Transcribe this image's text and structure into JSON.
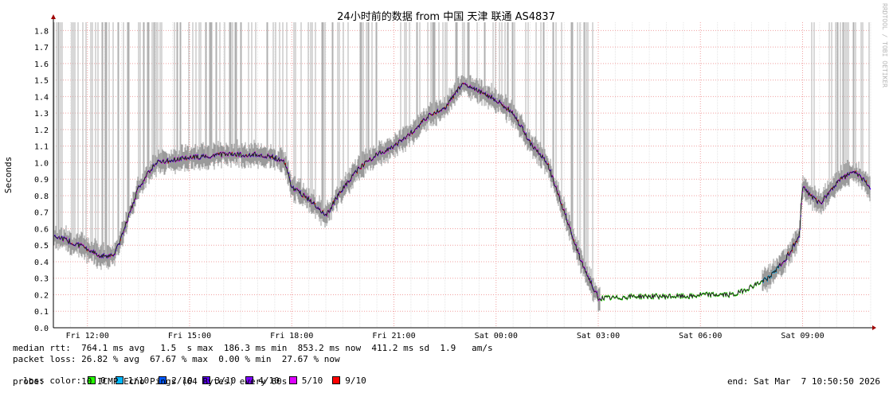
{
  "chart_data": {
    "type": "line",
    "title": "24小时前的数据 from  中国 天津 联通 AS4837",
    "ylabel": "Seconds",
    "xlabel": "",
    "ylim": [
      0,
      1.85
    ],
    "y_ticks": [
      "0.0",
      "0.1",
      "0.2",
      "0.3",
      "0.4",
      "0.5",
      "0.6",
      "0.7",
      "0.8",
      "0.9",
      "1.0",
      "1.1",
      "1.2",
      "1.3",
      "1.4",
      "1.5",
      "1.6",
      "1.7",
      "1.8"
    ],
    "x_ticks": [
      "Fri 12:00",
      "Fri 15:00",
      "Fri 18:00",
      "Fri 21:00",
      "Sat 00:00",
      "Sat 03:00",
      "Sat 06:00",
      "Sat 09:00"
    ],
    "x_range_hours": [
      -1,
      23
    ],
    "grid": true,
    "series": [
      {
        "x": [
          -1,
          -0.5,
          0,
          0.4,
          0.8,
          1,
          1.5,
          2,
          3,
          4,
          5,
          5.5,
          5.8,
          6,
          6.5,
          7,
          7.5,
          8,
          8.5,
          9,
          9.5,
          10,
          10.5,
          11,
          11.5,
          12,
          12.5,
          13,
          13.5,
          14,
          14.5,
          15,
          15.5,
          16,
          17,
          17.8,
          18,
          19,
          20,
          20.5,
          20.9,
          21,
          21.5,
          22,
          22.5,
          23
        ],
        "values": [
          0.56,
          0.52,
          0.48,
          0.43,
          0.45,
          0.55,
          0.85,
          1.0,
          1.03,
          1.05,
          1.05,
          1.03,
          1.0,
          0.85,
          0.78,
          0.68,
          0.85,
          0.97,
          1.05,
          1.1,
          1.18,
          1.28,
          1.33,
          1.48,
          1.43,
          1.38,
          1.3,
          1.12,
          1.0,
          0.7,
          0.4,
          0.18,
          0.18,
          0.19,
          0.19,
          0.19,
          0.2,
          0.2,
          0.3,
          0.42,
          0.55,
          0.85,
          0.75,
          0.88,
          0.95,
          0.85
        ]
      }
    ]
  },
  "stats": {
    "median_rtt": "median rtt:  764.1 ms avg   1.5  s max  186.3 ms min  853.2 ms now  411.2 ms sd  1.9   am/s",
    "packet_loss": "packet loss: 26.82 % avg  67.67 % max  0.00 % min  27.67 % now",
    "loss_color_label": "loss color:",
    "probe": "probe:       10 ICMP Echo Pings (64 Bytes) every 60s",
    "end": "end: Sat Mar  7 10:50:50 2026"
  },
  "loss_legend": [
    {
      "label": "0",
      "color": "#26ff00"
    },
    {
      "label": "1/10",
      "color": "#00b8ff"
    },
    {
      "label": "2/10",
      "color": "#0059ff"
    },
    {
      "label": "3/10",
      "color": "#5e00ff"
    },
    {
      "label": "4/10",
      "color": "#7e00ff"
    },
    {
      "label": "5/10",
      "color": "#dd00ff"
    },
    {
      "label": "9/10",
      "color": "#ff0000"
    }
  ],
  "watermark": "RRDTOOL / TOBI OETIKER"
}
